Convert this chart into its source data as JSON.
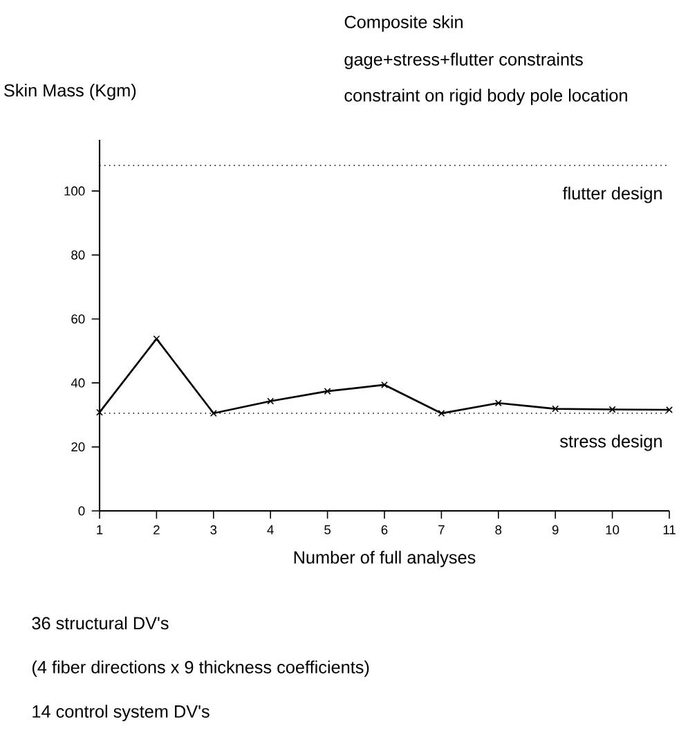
{
  "chart_data": {
    "type": "line",
    "title": "Composite skin",
    "subtitle": "gage+stress+flutter constraints",
    "ylabel": "Skin Mass (Kgm)",
    "xlabel": "Number of full analyses",
    "annotations": [
      "constraint on rigid body pole location",
      "36 structural DV's",
      "(4 fiber directions x 9 thickness coefficients)",
      "14 control system DV's"
    ],
    "x": [
      1,
      2,
      3,
      4,
      5,
      6,
      7,
      8,
      9,
      10,
      11
    ],
    "series": [
      {
        "color": "#000000",
        "values": [
          30.8,
          53.8,
          30.5,
          34.3,
          37.4,
          39.4,
          30.5,
          33.7,
          31.9,
          31.7,
          31.6
        ]
      }
    ],
    "xlim": [
      1,
      11
    ],
    "xticks": [
      1,
      2,
      3,
      4,
      5,
      6,
      7,
      8,
      9,
      10,
      11
    ],
    "ylim": [
      0,
      116
    ],
    "yticks": [
      0,
      20,
      40,
      60,
      80,
      100
    ],
    "ref_lines": [
      {
        "axis": "y",
        "value": 108,
        "label": "flutter design",
        "line_style": "dotted",
        "color": "#000000"
      },
      {
        "axis": "y",
        "value": 30.5,
        "label": "stress design",
        "line_style": "dotted",
        "color": "#000000"
      }
    ],
    "marker": "cross",
    "line_style": "solid",
    "grid": false
  }
}
